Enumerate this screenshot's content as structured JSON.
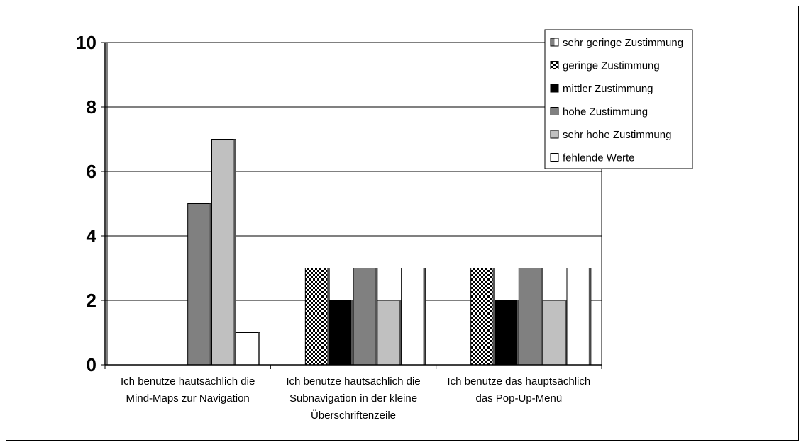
{
  "chart_data": {
    "type": "bar",
    "categories": [
      [
        "Ich benutze hautsächlich die",
        "Mind-Maps zur Navigation"
      ],
      [
        "Ich benutze hautsächlich die",
        "Subnavigation in der kleine",
        "Überschriftenzeile"
      ],
      [
        "Ich benutze das hauptsächlich",
        "das Pop-Up-Menü"
      ]
    ],
    "series": [
      {
        "name": "sehr geringe Zustimmung",
        "values": [
          0,
          0,
          0
        ],
        "pattern": "halfgray",
        "color": "#d9d9d9"
      },
      {
        "name": "geringe Zustimmung",
        "values": [
          0,
          3,
          3
        ],
        "pattern": "checker",
        "color": "#000000"
      },
      {
        "name": "mittler Zustimmung",
        "values": [
          0,
          2,
          2
        ],
        "pattern": "solid",
        "color": "#000000"
      },
      {
        "name": "hohe Zustimmung",
        "values": [
          5,
          3,
          3
        ],
        "pattern": "solid",
        "color": "#808080"
      },
      {
        "name": "sehr hohe Zustimmung",
        "values": [
          7,
          2,
          2
        ],
        "pattern": "solid",
        "color": "#c0c0c0"
      },
      {
        "name": "fehlende Werte",
        "values": [
          1,
          3,
          3
        ],
        "pattern": "solid",
        "color": "#ffffff"
      }
    ],
    "yticks": [
      0,
      2,
      4,
      6,
      8,
      10
    ],
    "ylim": [
      0,
      10
    ],
    "grid": true,
    "legend_position": "top-right"
  }
}
